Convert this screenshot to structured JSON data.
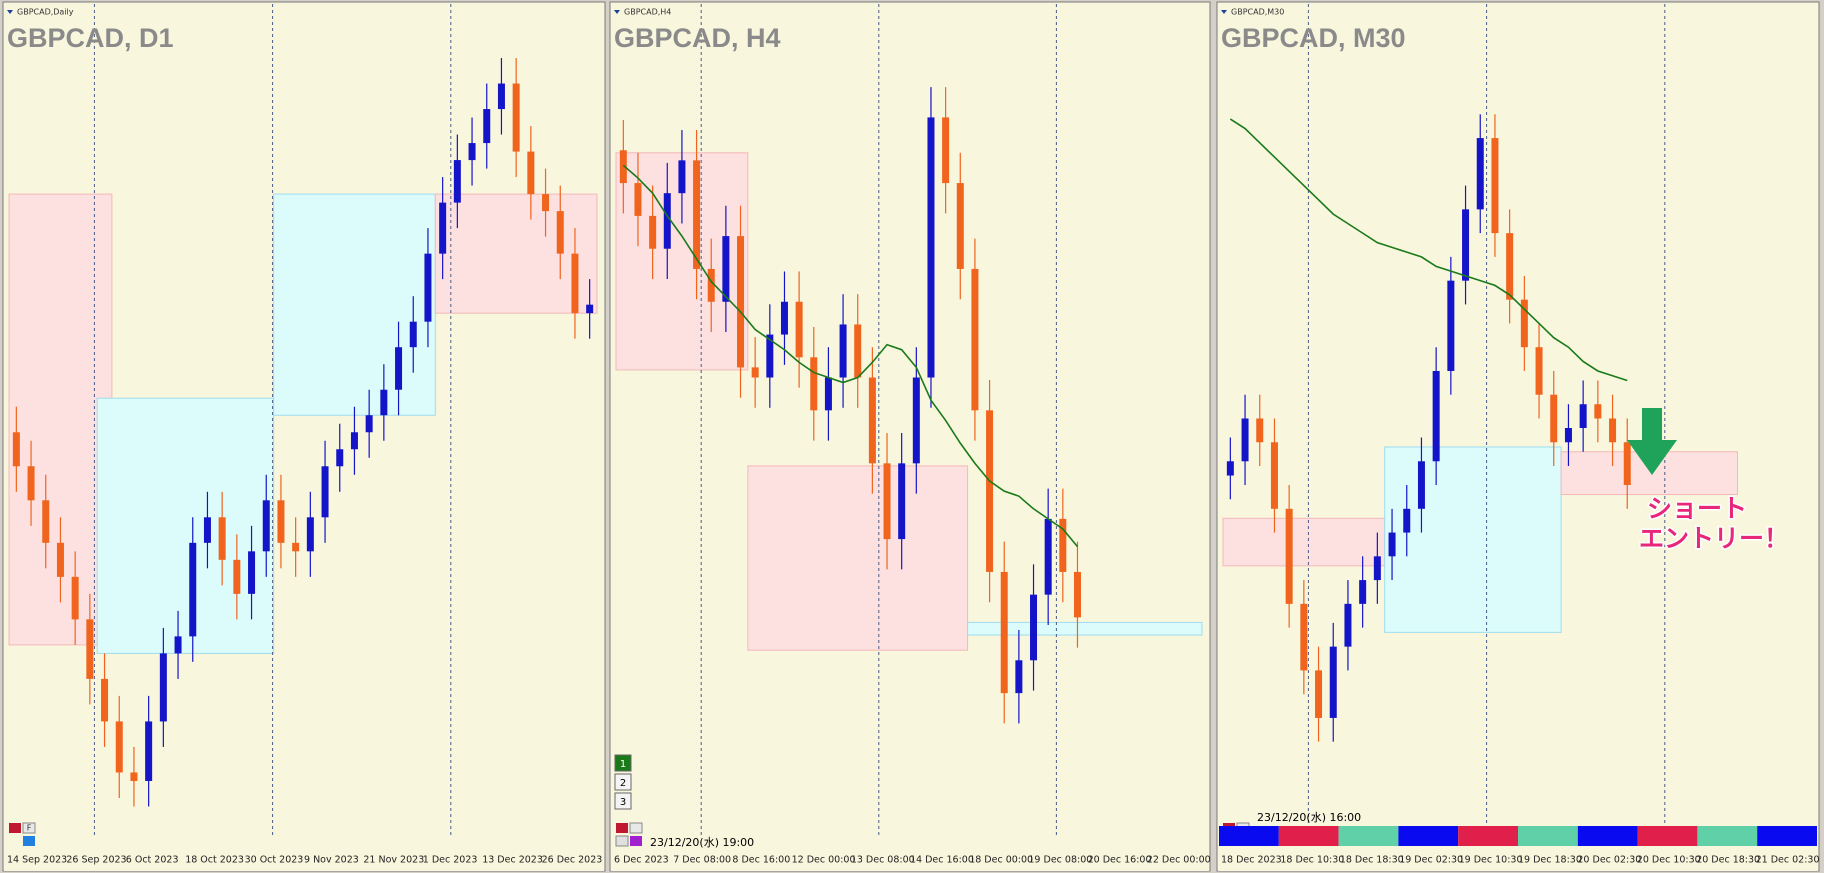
{
  "panels": [
    {
      "type": "candlestick",
      "symbol_label": "GBPCAD,Daily",
      "title": "GBPCAD, D1",
      "button": "F",
      "x_labels": [
        "14 Sep 2023",
        "26 Sep 2023",
        "6 Oct 2023",
        "18 Oct 2023",
        "30 Oct 2023",
        "9 Nov 2023",
        "21 Nov 2023",
        "1 Dec 2023",
        "13 Dec 2023",
        "26 Dec 2023"
      ],
      "ylim": [
        1.645,
        1.74
      ],
      "open": [
        1.692,
        1.688,
        1.684,
        1.679,
        1.675,
        1.67,
        1.663,
        1.658,
        1.652,
        1.651,
        1.658,
        1.666,
        1.668,
        1.679,
        1.682,
        1.677,
        1.673,
        1.678,
        1.684,
        1.679,
        1.678,
        1.682,
        1.688,
        1.69,
        1.692,
        1.694,
        1.697,
        1.702,
        1.705,
        1.713,
        1.719,
        1.724,
        1.726,
        1.73,
        1.733,
        1.725,
        1.72,
        1.718,
        1.713,
        1.706
      ],
      "high": [
        1.695,
        1.691,
        1.687,
        1.682,
        1.678,
        1.673,
        1.666,
        1.661,
        1.655,
        1.661,
        1.669,
        1.671,
        1.682,
        1.685,
        1.685,
        1.68,
        1.681,
        1.687,
        1.687,
        1.682,
        1.685,
        1.691,
        1.693,
        1.695,
        1.697,
        1.7,
        1.705,
        1.708,
        1.716,
        1.722,
        1.727,
        1.729,
        1.733,
        1.736,
        1.736,
        1.728,
        1.723,
        1.721,
        1.716,
        1.71
      ],
      "low": [
        1.685,
        1.681,
        1.676,
        1.672,
        1.667,
        1.66,
        1.655,
        1.649,
        1.648,
        1.648,
        1.655,
        1.663,
        1.665,
        1.676,
        1.674,
        1.67,
        1.67,
        1.675,
        1.676,
        1.675,
        1.675,
        1.679,
        1.685,
        1.687,
        1.689,
        1.691,
        1.694,
        1.699,
        1.702,
        1.71,
        1.716,
        1.721,
        1.723,
        1.727,
        1.722,
        1.717,
        1.715,
        1.71,
        1.703,
        1.703
      ],
      "close": [
        1.688,
        1.684,
        1.679,
        1.675,
        1.67,
        1.663,
        1.658,
        1.652,
        1.651,
        1.658,
        1.666,
        1.668,
        1.679,
        1.682,
        1.677,
        1.673,
        1.678,
        1.684,
        1.679,
        1.678,
        1.682,
        1.688,
        1.69,
        1.692,
        1.694,
        1.697,
        1.702,
        1.705,
        1.713,
        1.719,
        1.724,
        1.726,
        1.73,
        1.733,
        1.725,
        1.72,
        1.718,
        1.713,
        1.706,
        1.707
      ],
      "zones": [
        {
          "from": 0,
          "to": 6,
          "top": 1.72,
          "bottom": 1.667,
          "color": "#fde0e0"
        },
        {
          "from": 6,
          "to": 17,
          "top": 1.696,
          "bottom": 1.666,
          "color": "#dcfcfc"
        },
        {
          "from": 18,
          "to": 28,
          "top": 1.72,
          "bottom": 1.694,
          "color": "#dcfcfc"
        },
        {
          "from": 29,
          "to": 39,
          "top": 1.72,
          "bottom": 1.706,
          "color": "#fde0e0"
        }
      ]
    },
    {
      "type": "candlestick",
      "symbol_label": "GBPCAD,H4",
      "title": "GBPCAD, H4",
      "buttons": [
        "1",
        "2",
        "3"
      ],
      "timestamp": "23/12/20(水) 19:00",
      "x_labels": [
        "6 Dec 2023",
        "7 Dec 08:00",
        "8 Dec 16:00",
        "12 Dec 00:00",
        "13 Dec 08:00",
        "14 Dec 16:00",
        "18 Dec 00:00",
        "19 Dec 08:00",
        "20 Dec 16:00",
        "22 Dec 00:00"
      ],
      "ylim": [
        1.69,
        1.722
      ],
      "open": [
        1.717,
        1.7157,
        1.7144,
        1.7131,
        1.7153,
        1.7166,
        1.7123,
        1.711,
        1.7136,
        1.7084,
        1.708,
        1.7097,
        1.711,
        1.7088,
        1.7067,
        1.708,
        1.7101,
        1.708,
        1.7046,
        1.7016,
        1.7046,
        1.708,
        1.7183,
        1.7157,
        1.7123,
        1.7067,
        1.7003,
        1.6955,
        1.6968,
        1.6994,
        1.7024,
        1.7003
      ],
      "high": [
        1.7182,
        1.7169,
        1.7156,
        1.7165,
        1.7178,
        1.7178,
        1.7135,
        1.7148,
        1.7148,
        1.7096,
        1.7109,
        1.7122,
        1.7122,
        1.71,
        1.7092,
        1.7113,
        1.7113,
        1.7092,
        1.7058,
        1.7058,
        1.7092,
        1.7195,
        1.7195,
        1.7169,
        1.7135,
        1.7079,
        1.7015,
        1.698,
        1.7006,
        1.7036,
        1.7036,
        1.7015
      ],
      "low": [
        1.7145,
        1.7132,
        1.7119,
        1.7119,
        1.7141,
        1.7111,
        1.7098,
        1.7098,
        1.7072,
        1.7068,
        1.7068,
        1.7085,
        1.7076,
        1.7055,
        1.7055,
        1.7068,
        1.7068,
        1.7034,
        1.7004,
        1.7004,
        1.7034,
        1.7068,
        1.7145,
        1.7111,
        1.7055,
        1.6991,
        1.6943,
        1.6943,
        1.6956,
        1.6982,
        1.6991,
        1.6973
      ],
      "close": [
        1.7157,
        1.7144,
        1.7131,
        1.7153,
        1.7166,
        1.7123,
        1.711,
        1.7136,
        1.7084,
        1.708,
        1.7097,
        1.711,
        1.7088,
        1.7067,
        1.708,
        1.7101,
        1.708,
        1.7046,
        1.7016,
        1.7046,
        1.708,
        1.7183,
        1.7157,
        1.7123,
        1.7067,
        1.7003,
        1.6955,
        1.6968,
        1.6994,
        1.7024,
        1.7003,
        1.6985
      ],
      "ma": [
        1.7164,
        1.7159,
        1.7153,
        1.7144,
        1.7136,
        1.7127,
        1.7118,
        1.7112,
        1.7106,
        1.7099,
        1.7095,
        1.7091,
        1.7086,
        1.7082,
        1.708,
        1.7078,
        1.708,
        1.7086,
        1.7093,
        1.7091,
        1.7084,
        1.7071,
        1.7063,
        1.7054,
        1.7046,
        1.7039,
        1.7035,
        1.7033,
        1.7028,
        1.7024,
        1.702,
        1.7013
      ],
      "zones": [
        {
          "from": 0,
          "to": 8,
          "top": 1.7169,
          "bottom": 1.7083,
          "color": "#fde0e0"
        },
        {
          "from": 9,
          "to": 23,
          "top": 1.7045,
          "bottom": 1.6972,
          "color": "#fde0e0"
        },
        {
          "from": 24,
          "to": 39,
          "top": 1.6983,
          "bottom": 1.6978,
          "color": "#dcfcfc"
        }
      ]
    },
    {
      "type": "candlestick",
      "symbol_label": "GBPCAD,M30",
      "title": "GBPCAD, M30",
      "timestamp": "23/12/20(水) 16:00",
      "annotation": [
        "ショート",
        "エントリー！"
      ],
      "x_labels": [
        "18 Dec 2023",
        "18 Dec 10:30",
        "18 Dec 18:30",
        "19 Dec 02:30",
        "19 Dec 10:30",
        "19 Dec 18:30",
        "20 Dec 02:30",
        "20 Dec 10:30",
        "20 Dec 18:30",
        "21 Dec 02:30"
      ],
      "ylim": [
        1.6955,
        1.7125
      ],
      "open": [
        1.703,
        1.7033,
        1.7042,
        1.7037,
        1.7023,
        1.7003,
        1.6989,
        1.6979,
        1.6994,
        1.7003,
        1.7008,
        1.7013,
        1.7018,
        1.7023,
        1.7033,
        1.7052,
        1.7071,
        1.7086,
        1.7101,
        1.7081,
        1.7067,
        1.7057,
        1.7047,
        1.7037,
        1.704,
        1.7045,
        1.7042,
        1.7037
      ],
      "high": [
        1.7038,
        1.7047,
        1.7047,
        1.7042,
        1.7028,
        1.7008,
        1.6994,
        1.6999,
        1.7008,
        1.7013,
        1.7018,
        1.7023,
        1.7028,
        1.7038,
        1.7057,
        1.7076,
        1.7091,
        1.7106,
        1.7106,
        1.7086,
        1.7072,
        1.7062,
        1.7052,
        1.7045,
        1.705,
        1.705,
        1.7047,
        1.7042
      ],
      "low": [
        1.7025,
        1.7028,
        1.7032,
        1.7018,
        1.6998,
        1.6984,
        1.6974,
        1.6974,
        1.6989,
        1.6998,
        1.7003,
        1.7008,
        1.7013,
        1.7018,
        1.7028,
        1.7047,
        1.7066,
        1.7081,
        1.7076,
        1.7062,
        1.7052,
        1.7042,
        1.7032,
        1.7032,
        1.7035,
        1.7037,
        1.7032,
        1.7023
      ],
      "close": [
        1.7033,
        1.7042,
        1.7037,
        1.7023,
        1.7003,
        1.6989,
        1.6979,
        1.6994,
        1.7003,
        1.7008,
        1.7013,
        1.7018,
        1.7023,
        1.7033,
        1.7052,
        1.7071,
        1.7086,
        1.7101,
        1.7081,
        1.7067,
        1.7057,
        1.7047,
        1.7037,
        1.704,
        1.7045,
        1.7042,
        1.7037,
        1.7028
      ],
      "ma": [
        1.7105,
        1.7103,
        1.71,
        1.7097,
        1.7094,
        1.7091,
        1.7088,
        1.7085,
        1.7083,
        1.7081,
        1.7079,
        1.7078,
        1.7077,
        1.7076,
        1.7074,
        1.7073,
        1.7072,
        1.7071,
        1.707,
        1.7068,
        1.7065,
        1.7062,
        1.7059,
        1.7057,
        1.7054,
        1.7052,
        1.7051,
        1.705
      ],
      "zones": [
        {
          "from": 0,
          "to": 10,
          "top": 1.7021,
          "bottom": 1.7011,
          "color": "#fde0e0"
        },
        {
          "from": 11,
          "to": 22,
          "top": 1.7036,
          "bottom": 1.6997,
          "color": "#dcfcfc"
        },
        {
          "from": 23,
          "to": 34,
          "top": 1.7035,
          "bottom": 1.7026,
          "color": "#fde0e0"
        }
      ]
    }
  ]
}
